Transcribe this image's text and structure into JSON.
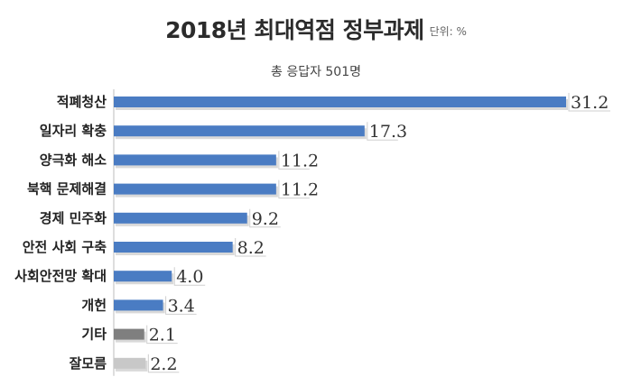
{
  "header": {
    "title": "2018년 최대역점 정부과제",
    "unit": "단위: %",
    "subtitle": "총 응답자 501명"
  },
  "colors": {
    "primary_bar": "#4a7cc3",
    "other_bar": "#7f7f7f",
    "unknown_bar": "#c8c8c8",
    "bar_shadow": "#d9d9d9"
  },
  "chart_data": {
    "type": "bar",
    "orientation": "horizontal",
    "title": "2018년 최대역점 정부과제",
    "unit": "단위: %",
    "subtitle": "총 응답자 501명",
    "categories": [
      "적폐청산",
      "일자리 확충",
      "양극화 해소",
      "북핵 문제해결",
      "경제 민주화",
      "안전 사회 구축",
      "사회안전망 확대",
      "개헌",
      "기타",
      "잘모름"
    ],
    "values": [
      31.2,
      17.3,
      11.2,
      11.2,
      9.2,
      8.2,
      4.0,
      3.4,
      2.1,
      2.2
    ],
    "value_labels": [
      "31.2",
      "17.3",
      "11.2",
      "11.2",
      "9.2",
      "8.2",
      "4.0",
      "3.4",
      "2.1",
      "2.2"
    ],
    "bar_colors": [
      "#4a7cc3",
      "#4a7cc3",
      "#4a7cc3",
      "#4a7cc3",
      "#4a7cc3",
      "#4a7cc3",
      "#4a7cc3",
      "#4a7cc3",
      "#7f7f7f",
      "#c8c8c8"
    ],
    "xlim": [
      0,
      31.2
    ],
    "grid": false,
    "legend": "none"
  }
}
